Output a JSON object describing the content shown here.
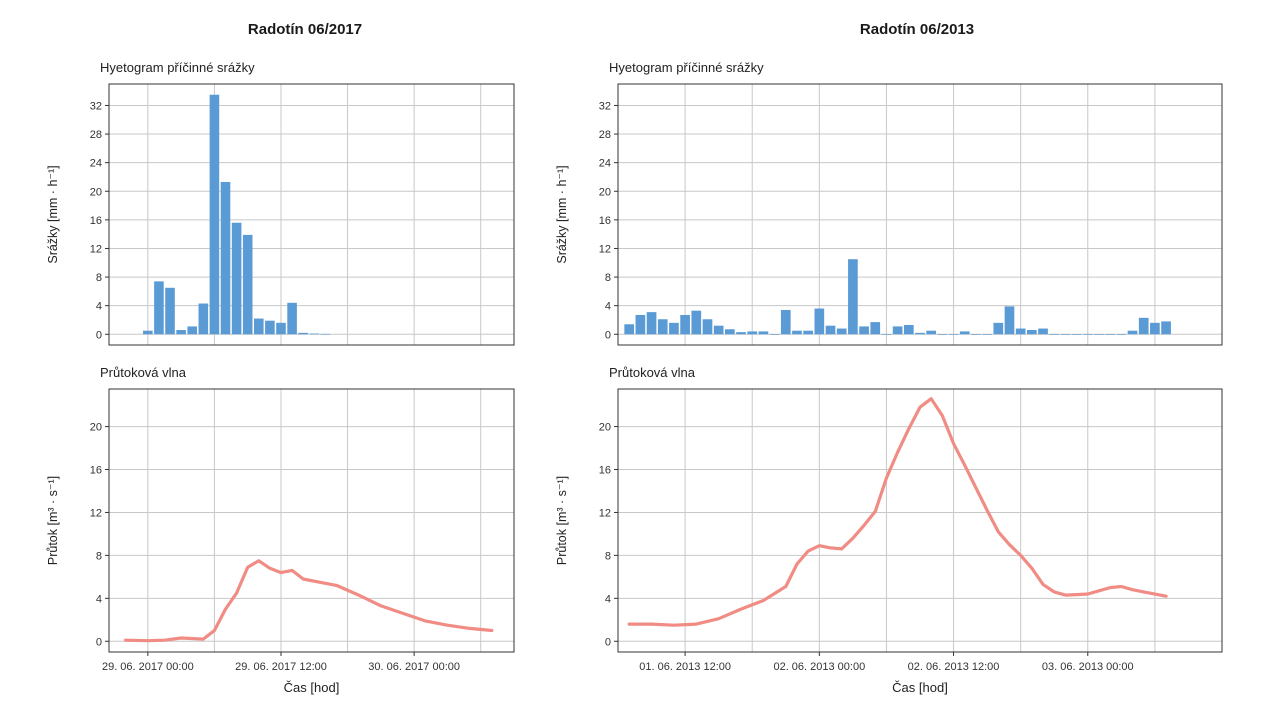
{
  "chart_data": [
    {
      "title": "Radotín 06/2017",
      "xlabel": "Čas [hod]",
      "x_ticks": [
        "29. 06. 2017 00:00",
        "29. 06. 2017 12:00",
        "30. 06. 2017 00:00"
      ],
      "x_range_hours": [
        -3.5,
        33
      ],
      "x_tick_hours": [
        0,
        12,
        24
      ],
      "rain": {
        "type": "bar",
        "subtitle": "Hyetogram příčinné srážky",
        "ylabel": "Srážky [mm · h⁻¹]",
        "ylim": [
          -1.5,
          35
        ],
        "yticks": [
          0,
          4,
          8,
          12,
          16,
          20,
          24,
          28,
          32
        ],
        "color": "#5b9bd5",
        "x_hours": [
          0,
          1,
          2,
          3,
          4,
          5,
          6,
          7,
          8,
          9,
          10,
          11,
          12,
          13,
          14,
          15,
          16
        ],
        "values": [
          0.5,
          7.4,
          6.5,
          0.6,
          1.1,
          4.3,
          33.5,
          21.3,
          15.6,
          13.9,
          2.2,
          1.9,
          1.6,
          4.4,
          0.2,
          0.1,
          0.05
        ]
      },
      "flow": {
        "type": "line",
        "subtitle": "Průtoková vlna",
        "ylabel": "Průtok [m³ · s⁻¹]",
        "ylim": [
          -1,
          23.5
        ],
        "yticks": [
          0,
          4,
          8,
          12,
          16,
          20
        ],
        "color": "#f08c84",
        "x_hours": [
          -2,
          0,
          1.5,
          3,
          5,
          6,
          7,
          8,
          9,
          10,
          11,
          12,
          13,
          14,
          15,
          17,
          19,
          21,
          23,
          25,
          27,
          29,
          31
        ],
        "values": [
          0.1,
          0.05,
          0.1,
          0.3,
          0.2,
          1.0,
          3.0,
          4.5,
          6.9,
          7.5,
          6.8,
          6.4,
          6.6,
          5.8,
          5.6,
          5.2,
          4.3,
          3.3,
          2.6,
          1.9,
          1.5,
          1.2,
          1.0
        ]
      }
    },
    {
      "title": "Radotín 06/2013",
      "xlabel": "Čas [hod]",
      "x_ticks": [
        "01. 06. 2013 12:00",
        "02. 06. 2013 00:00",
        "02. 06. 2013 12:00",
        "03. 06. 2013 00:00"
      ],
      "x_range_hours": [
        0,
        54
      ],
      "x_tick_hours": [
        6,
        18,
        30,
        42
      ],
      "rain": {
        "type": "bar",
        "subtitle": "Hyetogram příčinné srážky",
        "ylabel": "Srážky [mm · h⁻¹]",
        "ylim": [
          -1.5,
          35
        ],
        "yticks": [
          0,
          4,
          8,
          12,
          16,
          20,
          24,
          28,
          32
        ],
        "color": "#5b9bd5",
        "x_hours": [
          1,
          2,
          3,
          4,
          5,
          6,
          7,
          8,
          9,
          10,
          11,
          12,
          13,
          14,
          15,
          16,
          17,
          18,
          19,
          20,
          21,
          22,
          23,
          24,
          25,
          26,
          27,
          28,
          29,
          30,
          31,
          32,
          33,
          34,
          35,
          36,
          37,
          38,
          39,
          40,
          41,
          42,
          43,
          44,
          45,
          46,
          47,
          48,
          49
        ],
        "values": [
          1.4,
          2.7,
          3.1,
          2.1,
          1.6,
          2.7,
          3.3,
          2.1,
          1.2,
          0.7,
          0.3,
          0.4,
          0.4,
          0.0,
          3.4,
          0.5,
          0.5,
          3.6,
          1.2,
          0.8,
          10.5,
          1.1,
          1.7,
          0.0,
          1.1,
          1.3,
          0.2,
          0.5,
          0.0,
          0.0,
          0.4,
          0.0,
          0.0,
          1.6,
          3.9,
          0.8,
          0.6,
          0.8,
          0.0,
          0.0,
          0.0,
          0.0,
          0.0,
          0.0,
          0.0,
          0.5,
          2.3,
          1.6,
          1.8
        ]
      },
      "flow": {
        "type": "line",
        "subtitle": "Průtoková vlna",
        "ylabel": "Průtok [m³ · s⁻¹]",
        "ylim": [
          -1,
          23.5
        ],
        "yticks": [
          0,
          4,
          8,
          12,
          16,
          20
        ],
        "color": "#f08c84",
        "x_hours": [
          1,
          3,
          5,
          7,
          9,
          11,
          13,
          15,
          16,
          17,
          18,
          19,
          20,
          21,
          22,
          23,
          24,
          25,
          26,
          27,
          28,
          29,
          30,
          31,
          32,
          33,
          34,
          35,
          36,
          37,
          38,
          39,
          40,
          41,
          42,
          43,
          44,
          45,
          46,
          47,
          49
        ],
        "values": [
          1.6,
          1.6,
          1.5,
          1.6,
          2.1,
          3.0,
          3.8,
          5.1,
          7.2,
          8.4,
          8.9,
          8.7,
          8.6,
          9.6,
          10.8,
          12.1,
          15.2,
          17.6,
          19.8,
          21.8,
          22.6,
          21.0,
          18.4,
          16.4,
          14.3,
          12.2,
          10.2,
          9.0,
          8.0,
          6.8,
          5.3,
          4.6,
          4.3,
          4.35,
          4.4,
          4.7,
          5.0,
          5.1,
          4.8,
          4.6,
          4.2
        ]
      }
    }
  ]
}
